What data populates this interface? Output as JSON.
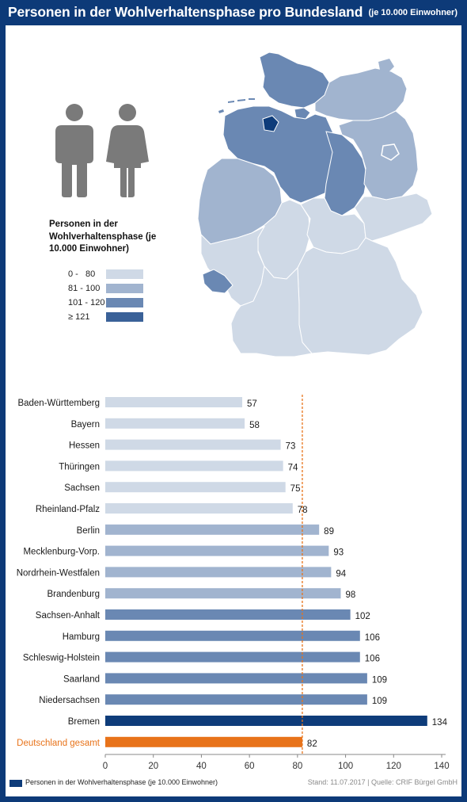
{
  "title": "Personen in der Wohlverhaltensphase pro Bundesland",
  "subtitle": "(je 10.000 Einwohner)",
  "colors": {
    "frame": "#0d3a78",
    "class_1": "#cfd9e6",
    "class_2": "#a1b4cf",
    "class_3": "#6a88b3",
    "class_4": "#0e3c7a",
    "total": "#e8731a",
    "reference_line": "#e8731a",
    "figures": "#7a7a7a",
    "grid": "#bbbbbb"
  },
  "legend": {
    "title": "Personen in der Wohlverhaltensphase (je 10.000 Einwohner)",
    "items": [
      {
        "label": "0 -   80",
        "color": "#cfd9e6"
      },
      {
        "label": "81 - 100",
        "color": "#a1b4cf"
      },
      {
        "label": "101 - 120",
        "color": "#6a88b3"
      },
      {
        "label": "≥ 121",
        "color": "#3a6198"
      }
    ]
  },
  "map": {
    "icons": [
      "male-figure-icon",
      "female-figure-icon"
    ],
    "type": "choropleth"
  },
  "chart_data": {
    "type": "bar",
    "orientation": "horizontal",
    "categories": [
      "Baden-Württemberg",
      "Bayern",
      "Hessen",
      "Thüringen",
      "Sachsen",
      "Rheinland-Pfalz",
      "Berlin",
      "Mecklenburg-Vorp.",
      "Nordrhein-Westfalen",
      "Brandenburg",
      "Sachsen-Anhalt",
      "Hamburg",
      "Schleswig-Holstein",
      "Saarland",
      "Niedersachsen",
      "Bremen",
      "Deutschland gesamt"
    ],
    "values": [
      57,
      58,
      73,
      74,
      75,
      78,
      89,
      93,
      94,
      98,
      102,
      106,
      106,
      109,
      109,
      134,
      82
    ],
    "value_labels": [
      "57",
      "58",
      "73",
      "74",
      "75",
      "78",
      "89",
      "93",
      "94",
      "98",
      "102",
      "106",
      "106",
      "109",
      "109",
      "134",
      "82"
    ],
    "bar_colors": [
      "#cfd9e6",
      "#cfd9e6",
      "#cfd9e6",
      "#cfd9e6",
      "#cfd9e6",
      "#cfd9e6",
      "#a1b4cf",
      "#a1b4cf",
      "#a1b4cf",
      "#a1b4cf",
      "#6a88b3",
      "#6a88b3",
      "#6a88b3",
      "#6a88b3",
      "#6a88b3",
      "#0e3c7a",
      "#e8731a"
    ],
    "highlight_label_color": "#e8731a",
    "xlim": [
      0,
      140
    ],
    "xticks": [
      "0",
      "20",
      "40",
      "60",
      "80",
      "100",
      "120",
      "140"
    ],
    "reference_value": 82,
    "grid": false
  },
  "footer": {
    "series_label": "Personen in der Wohlverhaltensphase (je 10.000 Einwohner)",
    "source": "Stand: 11.07.2017 | Quelle: CRIF Bürgel GmbH"
  }
}
